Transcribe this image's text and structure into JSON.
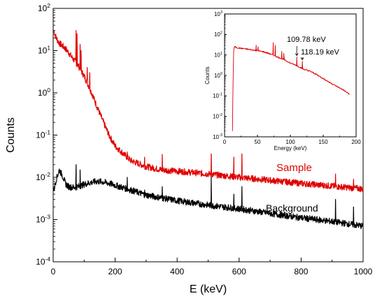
{
  "chart_data": [
    {
      "type": "line",
      "xlabel": "E (keV)",
      "ylabel": "Counts",
      "xlim": [
        0,
        1000
      ],
      "ylim": [
        0.0001,
        100
      ],
      "yscale": "log",
      "x_ticks": [
        "0",
        "200",
        "400",
        "600",
        "800",
        "1000"
      ],
      "y_ticks": [
        {
          "base": "10",
          "exp": "-4"
        },
        {
          "base": "10",
          "exp": "-3"
        },
        {
          "base": "10",
          "exp": "-2"
        },
        {
          "base": "10",
          "exp": "-1"
        },
        {
          "base": "10",
          "exp": "0"
        },
        {
          "base": "10",
          "exp": "1"
        },
        {
          "base": "10",
          "exp": "2"
        }
      ],
      "series": [
        {
          "name": "Sample",
          "color": "#e00000",
          "x": [
            2,
            5,
            10,
            15,
            20,
            30,
            40,
            50,
            60,
            80,
            100,
            120,
            140,
            160,
            180,
            200,
            250,
            300,
            350,
            400,
            450,
            500,
            600,
            700,
            800,
            900,
            1000
          ],
          "y": [
            30,
            25,
            20,
            17,
            15,
            13,
            11,
            9,
            7,
            4.5,
            2.5,
            1.2,
            0.5,
            0.22,
            0.1,
            0.055,
            0.025,
            0.018,
            0.015,
            0.014,
            0.013,
            0.012,
            0.01,
            0.0085,
            0.0072,
            0.0062,
            0.0053
          ],
          "peaks": [
            {
              "x": 74,
              "y": 30
            },
            {
              "x": 77,
              "y": 25
            },
            {
              "x": 87,
              "y": 14
            },
            {
              "x": 90,
              "y": 10
            },
            {
              "x": 110,
              "y": 4
            },
            {
              "x": 118,
              "y": 3
            },
            {
              "x": 239,
              "y": 0.04
            },
            {
              "x": 295,
              "y": 0.03
            },
            {
              "x": 352,
              "y": 0.035
            },
            {
              "x": 510,
              "y": 0.04
            },
            {
              "x": 583,
              "y": 0.03
            },
            {
              "x": 609,
              "y": 0.038
            },
            {
              "x": 911,
              "y": 0.012
            },
            {
              "x": 969,
              "y": 0.009
            }
          ]
        },
        {
          "name": "Background",
          "color": "#000000",
          "x": [
            2,
            10,
            20,
            30,
            40,
            50,
            60,
            70,
            80,
            100,
            120,
            140,
            160,
            180,
            200,
            250,
            300,
            400,
            500,
            600,
            700,
            800,
            900,
            1000
          ],
          "y": [
            0.005,
            0.009,
            0.015,
            0.011,
            0.007,
            0.006,
            0.0058,
            0.0058,
            0.006,
            0.0068,
            0.0075,
            0.008,
            0.0078,
            0.0072,
            0.0065,
            0.005,
            0.0038,
            0.0028,
            0.0022,
            0.0018,
            0.0014,
            0.0011,
            0.0009,
            0.0007
          ],
          "peaks": [
            {
              "x": 74,
              "y": 0.02
            },
            {
              "x": 87,
              "y": 0.015
            },
            {
              "x": 239,
              "y": 0.01
            },
            {
              "x": 295,
              "y": 0.005
            },
            {
              "x": 352,
              "y": 0.006
            },
            {
              "x": 510,
              "y": 0.01
            },
            {
              "x": 583,
              "y": 0.004
            },
            {
              "x": 609,
              "y": 0.006
            },
            {
              "x": 911,
              "y": 0.003
            },
            {
              "x": 969,
              "y": 0.002
            }
          ]
        }
      ]
    },
    {
      "type": "line",
      "xlabel": "Energy (keV)",
      "ylabel": "Counts",
      "xlim": [
        0,
        200
      ],
      "ylim": [
        0.001,
        1000
      ],
      "yscale": "log",
      "x_ticks": [
        "0",
        "50",
        "100",
        "150",
        "200"
      ],
      "y_ticks": [
        {
          "base": "10",
          "exp": "-3"
        },
        {
          "base": "10",
          "exp": "-2"
        },
        {
          "base": "10",
          "exp": "-1"
        },
        {
          "base": "10",
          "exp": "0"
        },
        {
          "base": "10",
          "exp": "1"
        },
        {
          "base": "10",
          "exp": "2"
        },
        {
          "base": "10",
          "exp": "3"
        }
      ],
      "annotations": [
        "109.78 keV",
        "118.19 keV"
      ],
      "series": [
        {
          "color": "#e00000",
          "x": [
            12,
            13,
            14,
            15,
            20,
            30,
            40,
            50,
            60,
            70,
            80,
            90,
            100,
            110,
            120,
            130,
            140,
            150,
            160,
            170,
            180,
            190
          ],
          "y": [
            0.002,
            1,
            20,
            25,
            22,
            20,
            18,
            16,
            14,
            11,
            8,
            6,
            4,
            3,
            2,
            1.6,
            1.1,
            0.7,
            0.45,
            0.3,
            0.2,
            0.12
          ],
          "peaks": [
            {
              "x": 48,
              "y": 30
            },
            {
              "x": 51,
              "y": 25
            },
            {
              "x": 74,
              "y": 40
            },
            {
              "x": 77,
              "y": 30
            },
            {
              "x": 87,
              "y": 15
            },
            {
              "x": 90,
              "y": 12
            },
            {
              "x": 109.78,
              "y": 8
            },
            {
              "x": 118.19,
              "y": 5
            }
          ]
        }
      ]
    }
  ],
  "legend": {
    "sample_label": "Sample",
    "background_label": "Background"
  },
  "colors": {
    "sample": "#e00000",
    "background": "#000000",
    "axis": "#000000"
  }
}
